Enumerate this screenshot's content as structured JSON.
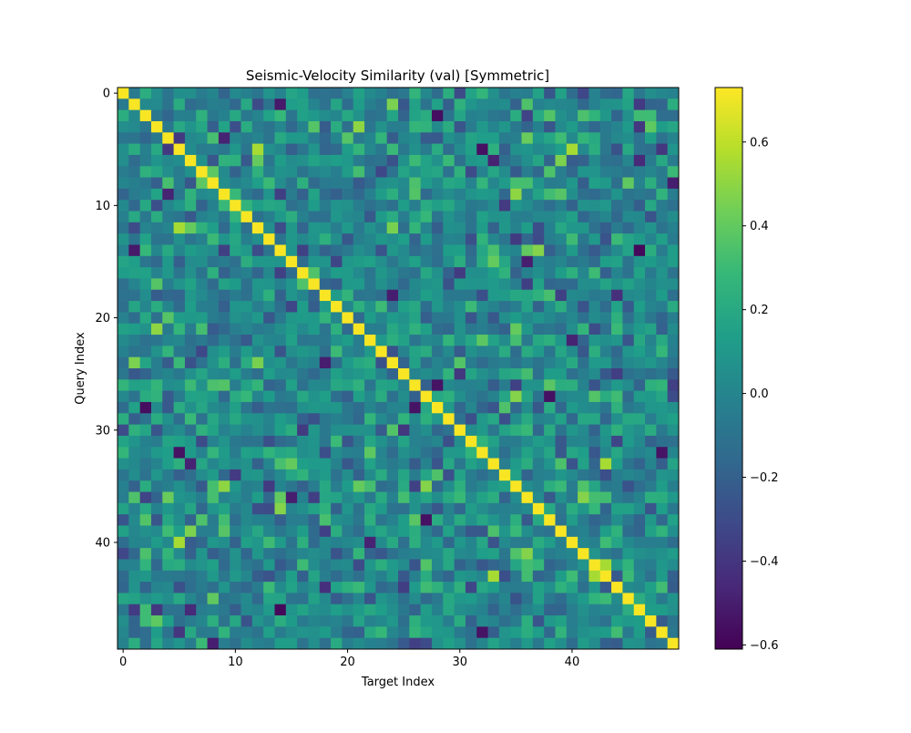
{
  "chart_data": {
    "type": "heatmap",
    "title": "Seismic-Velocity Similarity (val) [Symmetric]",
    "xlabel": "Target Index",
    "ylabel": "Query Index",
    "rows": 50,
    "cols": 50,
    "symmetric": true,
    "diagonal_value": 0.72,
    "colormap": "viridis",
    "vmin": -0.61,
    "vmax": 0.73,
    "x_ticks": [
      0,
      10,
      20,
      30,
      40
    ],
    "y_ticks": [
      0,
      10,
      20,
      30,
      40
    ],
    "colorbar_ticks": [
      -0.6,
      -0.4,
      -0.2,
      0.0,
      0.2,
      0.4,
      0.6
    ],
    "colorbar_tick_labels": [
      "−0.6",
      "−0.4",
      "−0.2",
      "0.0",
      "0.2",
      "0.4",
      "0.6"
    ],
    "colormap_stops": [
      "#440154",
      "#482878",
      "#3e4989",
      "#31688e",
      "#26828e",
      "#1f9e89",
      "#35b779",
      "#6ece58",
      "#b5de2b",
      "#fde725"
    ],
    "notable_cells": [
      {
        "row": 14,
        "col": 1,
        "value": -0.52
      },
      {
        "row": 14,
        "col": 46,
        "value": -0.58
      },
      {
        "row": 2,
        "col": 28,
        "value": -0.56
      },
      {
        "row": 5,
        "col": 32,
        "value": -0.55
      },
      {
        "row": 26,
        "col": 28,
        "value": -0.54
      },
      {
        "row": 38,
        "col": 27,
        "value": -0.55
      },
      {
        "row": 48,
        "col": 32,
        "value": -0.54
      },
      {
        "row": 49,
        "col": 8,
        "value": -0.5
      },
      {
        "row": 36,
        "col": 15,
        "value": -0.5
      },
      {
        "row": 24,
        "col": 18,
        "value": -0.5
      },
      {
        "row": 12,
        "col": 5,
        "value": 0.55
      },
      {
        "row": 3,
        "col": 21,
        "value": 0.5
      },
      {
        "row": 40,
        "col": 5,
        "value": 0.55
      },
      {
        "row": 33,
        "col": 43,
        "value": 0.55
      },
      {
        "row": 9,
        "col": 35,
        "value": 0.5
      },
      {
        "row": 43,
        "col": 42,
        "value": 0.55
      }
    ]
  }
}
